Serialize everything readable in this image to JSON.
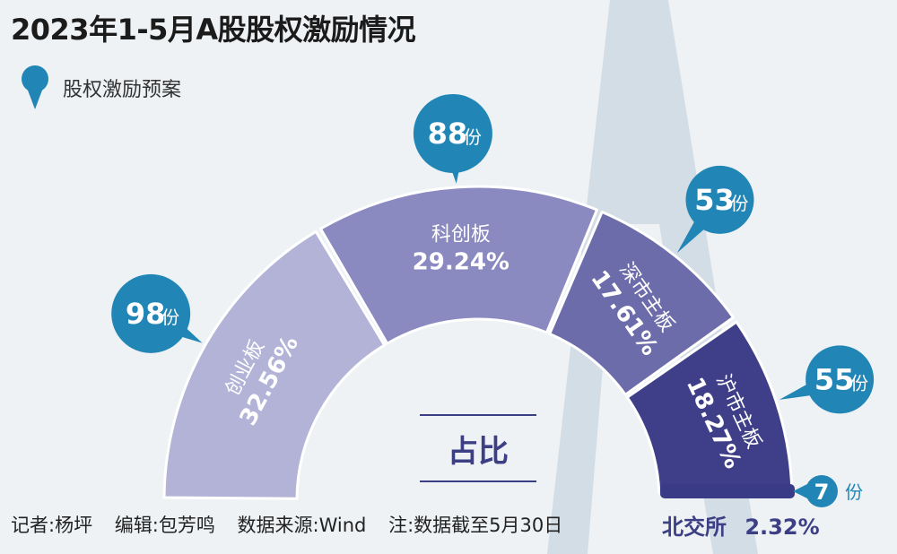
{
  "title": "2023年1-5月A股股权激励情况",
  "legend": {
    "label": "股权激励预案",
    "marker_color": "#2186b5"
  },
  "center_label": "占比",
  "chart_data": {
    "type": "pie",
    "variant": "semicircle-donut",
    "title": "2023年1-5月A股股权激励情况",
    "categories": [
      "创业板",
      "科创板",
      "深市主板",
      "沪市主板",
      "北交所"
    ],
    "percent_labels": [
      "32.56%",
      "29.24%",
      "17.61%",
      "18.27%",
      "2.32%"
    ],
    "shares": [
      32.56,
      29.24,
      17.61,
      18.27,
      2.32
    ],
    "counts": [
      98,
      88,
      53,
      55,
      7
    ],
    "count_unit": "份",
    "colors": [
      "#b3b3d8",
      "#8a89c0",
      "#6d6caa",
      "#3e3f88",
      "#3a3b86"
    ]
  },
  "footer": {
    "reporter": "记者:杨坪",
    "editor": "编辑:包芳鸣",
    "source": "数据来源:Wind",
    "note": "注:数据截至5月30日"
  }
}
